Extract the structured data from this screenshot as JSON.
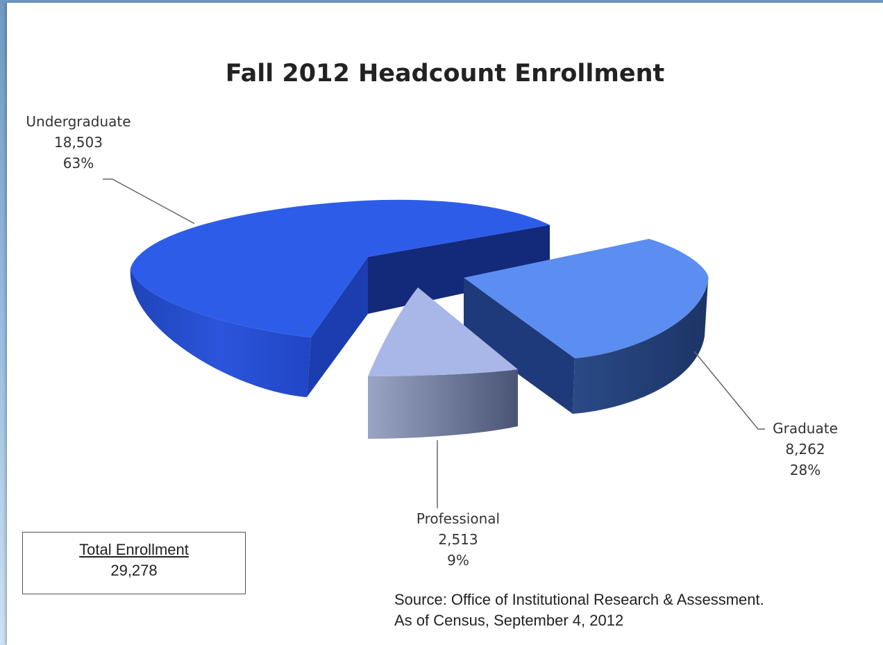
{
  "chart_data": {
    "type": "pie",
    "title": "Fall 2012 Headcount Enrollment",
    "slices": [
      {
        "name": "Undergraduate",
        "value_label": "18,503",
        "percent_label": "63%",
        "value": 18503,
        "color": "#2d5de8"
      },
      {
        "name": "Graduate",
        "value_label": "8,262",
        "percent_label": "28%",
        "value": 8262,
        "color": "#5b8ef0"
      },
      {
        "name": "Professional",
        "value_label": "2,513",
        "percent_label": "9%",
        "value": 2513,
        "color": "#a9b6e8"
      }
    ]
  },
  "total": {
    "label": "Total Enrollment",
    "value": "29,278"
  },
  "source": {
    "line1": "Source: Office of Institutional Research & Assessment.",
    "line2": "As of Census, September 4, 2012"
  }
}
